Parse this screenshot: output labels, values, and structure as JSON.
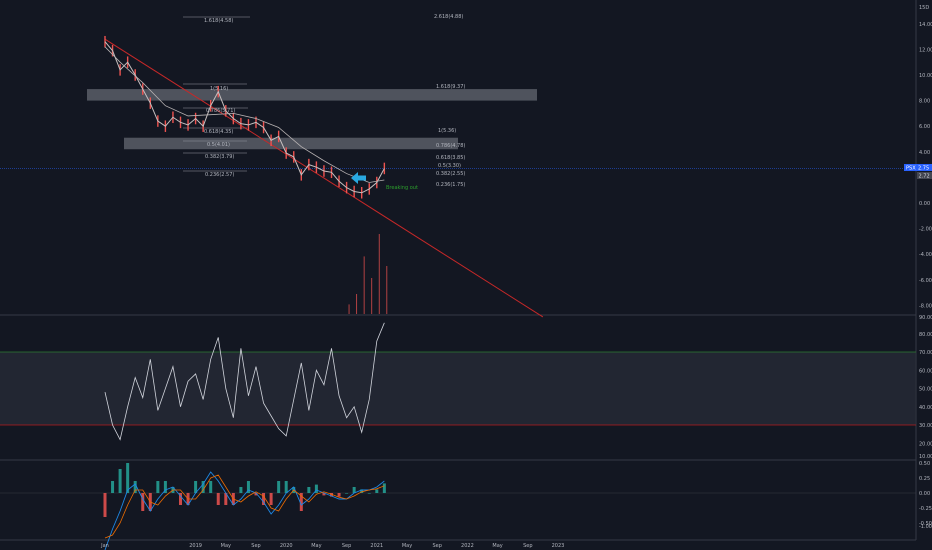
{
  "colors": {
    "background": "#131722",
    "grid": "#1e222d",
    "price_line": "#c7c0c0",
    "price_wick": "#ef5350",
    "ma_line": "#b8b3b3",
    "trendline": "#c62828",
    "zone_fill": "#787b86",
    "rsi_line": "#d1d4dc",
    "rsi_band": "#2a2e39",
    "rsi_upper": "#2e7d32",
    "rsi_lower": "#b71c1c",
    "macd_line": "#1e88e5",
    "signal_line": "#ef6c00",
    "hist_pos": "#26a69a",
    "hist_neg": "#ef5350",
    "arrow": "#29a8e0",
    "annotation": "#2ca02c",
    "last_price_badge": "#2962ff"
  },
  "axes": {
    "price_ticks": [
      "15D",
      "14.00",
      "12.00",
      "10.00",
      "8.00",
      "6.00",
      "4.00",
      "0.00",
      "-2.00",
      "-4.00",
      "-6.00",
      "-8.00"
    ],
    "rsi_ticks": [
      "90.00",
      "80.00",
      "70.00",
      "60.00",
      "50.00",
      "40.00",
      "30.00",
      "20.00",
      "10.00"
    ],
    "macd_ticks": [
      "0.50",
      "0.25",
      "0.00",
      "-0.25",
      "-0.50",
      "-1.00"
    ],
    "time_ticks": [
      "Jan",
      "2019",
      "May",
      "Sep",
      "2020",
      "May",
      "Sep",
      "2021",
      "May",
      "Sep",
      "2022",
      "May",
      "Sep",
      "2023"
    ]
  },
  "badges": {
    "last_price_label": "PSX",
    "last_price_value": "2.75",
    "secondary_value": "2.72"
  },
  "fib_labels": {
    "top": [
      "1.618(4.58)",
      "2.618(4.88)"
    ],
    "upper_zone": [
      "1(5.16)",
      "1.618(9.37)"
    ],
    "mid": [
      "0.786(5.71)",
      "0.618(4.35)",
      "0.5(4.01)",
      "0.382(3.79)",
      "0.236(2.57)"
    ],
    "right": [
      "1(5.36)",
      "0.786(4.78)",
      "0.618(3.85)",
      "0.5(3.30)",
      "0.382(2.55)",
      "0.236(1.75)"
    ]
  },
  "annotation": "Breaking out",
  "chart_data": [
    {
      "type": "line",
      "panel": "price",
      "x_range": [
        "2018-01",
        "2023-03"
      ],
      "ylim": [
        -9,
        15.5
      ],
      "series": [
        {
          "x": [
            "2018-01",
            "2018-02",
            "2018-03",
            "2018-04",
            "2018-05",
            "2018-06",
            "2018-07",
            "2018-08",
            "2018-09",
            "2018-10",
            "2018-11",
            "2018-12",
            "2019-01",
            "2019-02",
            "2019-03",
            "2019-04",
            "2019-05",
            "2019-06",
            "2019-07",
            "2019-08",
            "2019-09",
            "2019-10",
            "2019-11",
            "2019-12",
            "2020-01",
            "2020-02",
            "2020-03",
            "2020-04",
            "2020-05",
            "2020-06",
            "2020-07",
            "2020-08",
            "2020-09",
            "2020-10",
            "2020-11",
            "2020-12",
            "2021-01",
            "2021-02"
          ],
          "values": [
            12.6,
            11.9,
            10.4,
            11.0,
            10.0,
            8.9,
            7.8,
            6.4,
            6.0,
            6.7,
            6.3,
            6.1,
            6.6,
            6.0,
            7.6,
            8.7,
            7.2,
            6.6,
            6.2,
            6.1,
            6.3,
            5.9,
            4.9,
            5.2,
            3.9,
            3.6,
            2.2,
            3.0,
            2.8,
            2.5,
            2.4,
            1.7,
            1.2,
            0.9,
            0.8,
            1.1,
            1.6,
            2.7
          ]
        },
        {
          "x": [
            "2018-01",
            "2018-03",
            "2018-06",
            "2018-09",
            "2018-12",
            "2019-03",
            "2019-06",
            "2019-09",
            "2019-12",
            "2020-03",
            "2020-06",
            "2020-09",
            "2020-12",
            "2021-02"
          ],
          "values": [
            12.2,
            11.0,
            9.4,
            7.6,
            6.8,
            6.9,
            7.0,
            6.6,
            5.9,
            4.4,
            3.3,
            2.3,
            1.6,
            1.8
          ]
        }
      ],
      "trendline": {
        "x": [
          "2018-01",
          "2022-11"
        ],
        "values": [
          12.8,
          -8.9
        ]
      },
      "zones": [
        {
          "from": 8.0,
          "to": 8.9
        },
        {
          "from": 4.2,
          "to": 5.1
        }
      ],
      "volume": {
        "x": [
          "2020-09",
          "2020-10",
          "2020-11",
          "2020-12",
          "2021-01",
          "2021-02"
        ],
        "values": [
          0.12,
          0.25,
          0.72,
          0.45,
          1.0,
          0.6
        ]
      }
    },
    {
      "type": "line",
      "panel": "rsi",
      "ylim": [
        10,
        92
      ],
      "bands": [
        30,
        70
      ],
      "series": [
        {
          "x": [
            "2018-01",
            "2018-02",
            "2018-03",
            "2018-04",
            "2018-05",
            "2018-06",
            "2018-07",
            "2018-08",
            "2018-09",
            "2018-10",
            "2018-11",
            "2018-12",
            "2019-01",
            "2019-02",
            "2019-03",
            "2019-04",
            "2019-05",
            "2019-06",
            "2019-07",
            "2019-08",
            "2019-09",
            "2019-10",
            "2019-11",
            "2019-12",
            "2020-01",
            "2020-02",
            "2020-03",
            "2020-04",
            "2020-05",
            "2020-06",
            "2020-07",
            "2020-08",
            "2020-09",
            "2020-10",
            "2020-11",
            "2020-12",
            "2021-01",
            "2021-02"
          ],
          "values": [
            48,
            30,
            22,
            40,
            56,
            45,
            66,
            38,
            50,
            62,
            40,
            54,
            58,
            44,
            66,
            78,
            50,
            34,
            72,
            46,
            62,
            42,
            35,
            28,
            24,
            44,
            64,
            38,
            60,
            52,
            72,
            46,
            34,
            40,
            26,
            44,
            76,
            86
          ]
        }
      ]
    },
    {
      "type": "line",
      "panel": "macd",
      "ylim": [
        -1.15,
        0.65
      ],
      "series": [
        {
          "x": [
            "2018-01",
            "2018-02",
            "2018-03",
            "2018-04",
            "2018-05",
            "2018-06",
            "2018-07",
            "2018-08",
            "2018-09",
            "2018-10",
            "2018-11",
            "2018-12",
            "2019-01",
            "2019-02",
            "2019-03",
            "2019-04",
            "2019-05",
            "2019-06",
            "2019-07",
            "2019-08",
            "2019-09",
            "2019-10",
            "2019-11",
            "2019-12",
            "2020-01",
            "2020-02",
            "2020-03",
            "2020-04",
            "2020-05",
            "2020-06",
            "2020-07",
            "2020-08",
            "2020-09",
            "2020-10",
            "2020-11",
            "2020-12",
            "2021-01",
            "2021-02"
          ],
          "values": [
            -0.95,
            -0.6,
            -0.3,
            0.05,
            0.15,
            -0.1,
            -0.3,
            -0.1,
            0.05,
            0.1,
            -0.05,
            -0.2,
            0.0,
            0.15,
            0.35,
            0.2,
            0.0,
            -0.2,
            -0.1,
            0.05,
            0.0,
            -0.15,
            -0.35,
            -0.2,
            0.0,
            0.1,
            -0.2,
            -0.1,
            0.05,
            0.0,
            -0.05,
            -0.1,
            -0.1,
            0.0,
            0.05,
            0.05,
            0.1,
            0.2
          ]
        },
        {
          "x": [
            "2018-01",
            "2018-02",
            "2018-03",
            "2018-04",
            "2018-05",
            "2018-06",
            "2018-07",
            "2018-08",
            "2018-09",
            "2018-10",
            "2018-11",
            "2018-12",
            "2019-01",
            "2019-02",
            "2019-03",
            "2019-04",
            "2019-05",
            "2019-06",
            "2019-07",
            "2019-08",
            "2019-09",
            "2019-10",
            "2019-11",
            "2019-12",
            "2020-01",
            "2020-02",
            "2020-03",
            "2020-04",
            "2020-05",
            "2020-06",
            "2020-07",
            "2020-08",
            "2020-09",
            "2020-10",
            "2020-11",
            "2020-12",
            "2021-01",
            "2021-02"
          ],
          "values": [
            -0.75,
            -0.7,
            -0.5,
            -0.2,
            0.05,
            0.05,
            -0.15,
            -0.2,
            -0.05,
            0.05,
            0.05,
            -0.1,
            -0.1,
            0.05,
            0.25,
            0.3,
            0.1,
            -0.1,
            -0.15,
            -0.05,
            0.02,
            -0.05,
            -0.25,
            -0.3,
            -0.1,
            0.05,
            -0.05,
            -0.15,
            -0.02,
            0.02,
            -0.02,
            -0.07,
            -0.1,
            -0.05,
            0.02,
            0.05,
            0.07,
            0.12
          ]
        }
      ]
    }
  ]
}
